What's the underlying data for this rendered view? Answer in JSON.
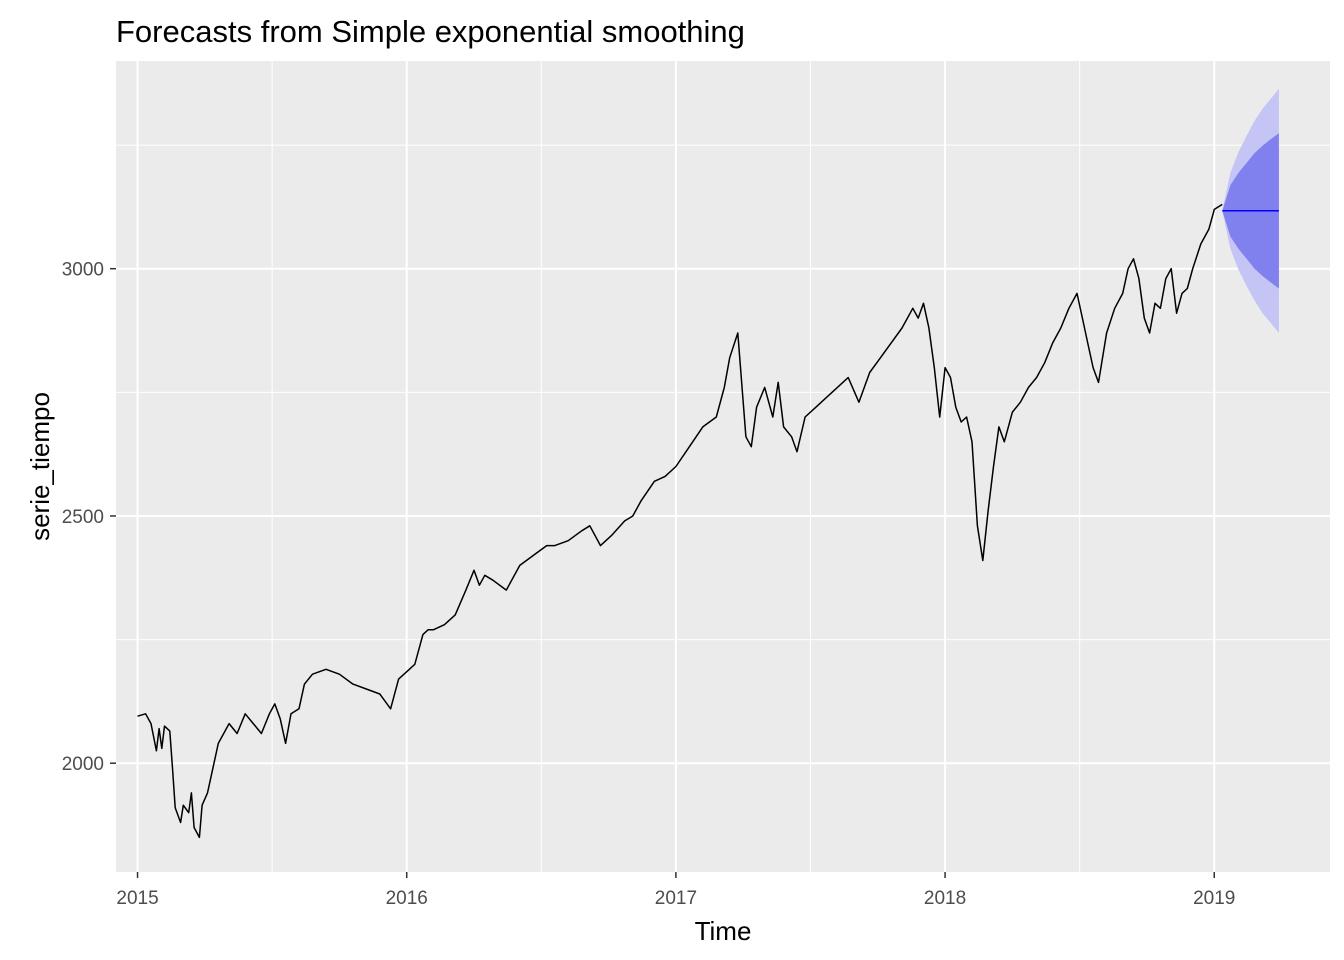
{
  "chart_data": {
    "type": "line",
    "title": "Forecasts from Simple exponential smoothing",
    "xlabel": "Time",
    "ylabel": "serie_tiempo",
    "xlim": [
      2014.92,
      2019.43
    ],
    "ylim": [
      1780,
      3420
    ],
    "x_ticks": [
      2015,
      2016,
      2017,
      2018,
      2019
    ],
    "x_tick_labels": [
      "2015",
      "2016",
      "2017",
      "2018",
      "2019"
    ],
    "x_minor_ticks": [
      2015.5,
      2016.5,
      2017.5,
      2018.5
    ],
    "y_ticks": [
      2000,
      2500,
      3000
    ],
    "y_tick_labels": [
      "2000",
      "2500",
      "3000"
    ],
    "y_minor_ticks": [
      1750,
      2250,
      2750,
      3250
    ],
    "grid": true,
    "colors": {
      "panel": "#ebebeb",
      "grid": "#ffffff",
      "series": "#000000",
      "forecast_mean": "#0000ff",
      "interval_80": "#8080ee",
      "interval_95": "#c4c4f5"
    },
    "series": [
      {
        "x": [
          2015.0,
          2015.03,
          2015.05,
          2015.07,
          2015.08,
          2015.09,
          2015.1,
          2015.12,
          2015.13,
          2015.14,
          2015.16,
          2015.17,
          2015.19,
          2015.2,
          2015.21,
          2015.23,
          2015.24,
          2015.26,
          2015.28,
          2015.3,
          2015.32,
          2015.34,
          2015.37,
          2015.4,
          2015.43,
          2015.46,
          2015.49,
          2015.51,
          2015.53,
          2015.55,
          2015.57,
          2015.6,
          2015.62,
          2015.65,
          2015.7,
          2015.75,
          2015.8,
          2015.85,
          2015.9,
          2015.94,
          2015.97,
          2015.99,
          2016.03,
          2016.06,
          2016.08,
          2016.1,
          2016.14,
          2016.18,
          2016.22,
          2016.25,
          2016.27,
          2016.29,
          2016.32,
          2016.37,
          2016.42,
          2016.47,
          2016.52,
          2016.55,
          2016.6,
          2016.65,
          2016.68,
          2016.72,
          2016.76,
          2016.81,
          2016.84,
          2016.87,
          2016.92,
          2016.96,
          2017.0,
          2017.05,
          2017.1,
          2017.15,
          2017.18,
          2017.2,
          2017.23,
          2017.26,
          2017.28,
          2017.3,
          2017.33,
          2017.36,
          2017.38,
          2017.4,
          2017.43,
          2017.45,
          2017.48,
          2017.52,
          2017.56,
          2017.6,
          2017.64,
          2017.68,
          2017.72,
          2017.76,
          2017.8,
          2017.84,
          2017.88,
          2017.9,
          2017.92,
          2017.94,
          2017.96,
          2017.98,
          2018.0,
          2018.02,
          2018.04,
          2018.06,
          2018.08,
          2018.1,
          2018.12,
          2018.14,
          2018.16,
          2018.18,
          2018.2,
          2018.22,
          2018.25,
          2018.28,
          2018.31,
          2018.34,
          2018.37,
          2018.4,
          2018.43,
          2018.46,
          2018.49,
          2018.51,
          2018.53,
          2018.55,
          2018.57,
          2018.6,
          2018.63,
          2018.66,
          2018.68,
          2018.7,
          2018.72,
          2018.74,
          2018.76,
          2018.78,
          2018.8,
          2018.82,
          2018.84,
          2018.86,
          2018.88,
          2018.9,
          2018.92,
          2018.95,
          2018.98,
          2019.0,
          2019.03
        ],
        "y": [
          2095,
          2100,
          2080,
          2025,
          2070,
          2030,
          2075,
          2065,
          1990,
          1910,
          1880,
          1915,
          1900,
          1940,
          1870,
          1850,
          1915,
          1940,
          1990,
          2040,
          2060,
          2080,
          2060,
          2100,
          2080,
          2060,
          2100,
          2120,
          2090,
          2040,
          2100,
          2110,
          2160,
          2180,
          2190,
          2180,
          2160,
          2150,
          2140,
          2110,
          2170,
          2180,
          2200,
          2260,
          2270,
          2270,
          2280,
          2300,
          2350,
          2390,
          2360,
          2380,
          2370,
          2350,
          2400,
          2420,
          2440,
          2440,
          2450,
          2470,
          2480,
          2440,
          2460,
          2490,
          2500,
          2530,
          2570,
          2580,
          2600,
          2640,
          2680,
          2700,
          2760,
          2820,
          2870,
          2660,
          2640,
          2720,
          2760,
          2700,
          2770,
          2680,
          2660,
          2630,
          2700,
          2720,
          2740,
          2760,
          2780,
          2730,
          2790,
          2820,
          2850,
          2880,
          2920,
          2900,
          2930,
          2880,
          2800,
          2700,
          2800,
          2780,
          2720,
          2690,
          2700,
          2650,
          2480,
          2410,
          2510,
          2600,
          2680,
          2650,
          2710,
          2730,
          2760,
          2780,
          2810,
          2850,
          2880,
          2920,
          2950,
          2900,
          2850,
          2800,
          2770,
          2870,
          2920,
          2950,
          3000,
          3020,
          2980,
          2900,
          2870,
          2930,
          2920,
          2980,
          3000,
          2910,
          2950,
          2960,
          3000,
          3050,
          3080,
          3120,
          3130
        ]
      }
    ],
    "forecast": {
      "x": [
        2019.03,
        2019.06,
        2019.09,
        2019.12,
        2019.15,
        2019.18,
        2019.21,
        2019.24
      ],
      "mean": [
        3117,
        3117,
        3117,
        3117,
        3117,
        3117,
        3117,
        3117
      ],
      "lo80": [
        3117,
        3065,
        3040,
        3020,
        3000,
        2985,
        2972,
        2960
      ],
      "hi80": [
        3117,
        3169,
        3194,
        3214,
        3234,
        3249,
        3262,
        3274
      ],
      "lo95": [
        3117,
        3040,
        2998,
        2965,
        2935,
        2910,
        2890,
        2870
      ],
      "hi95": [
        3117,
        3194,
        3236,
        3269,
        3299,
        3324,
        3344,
        3364
      ]
    }
  }
}
